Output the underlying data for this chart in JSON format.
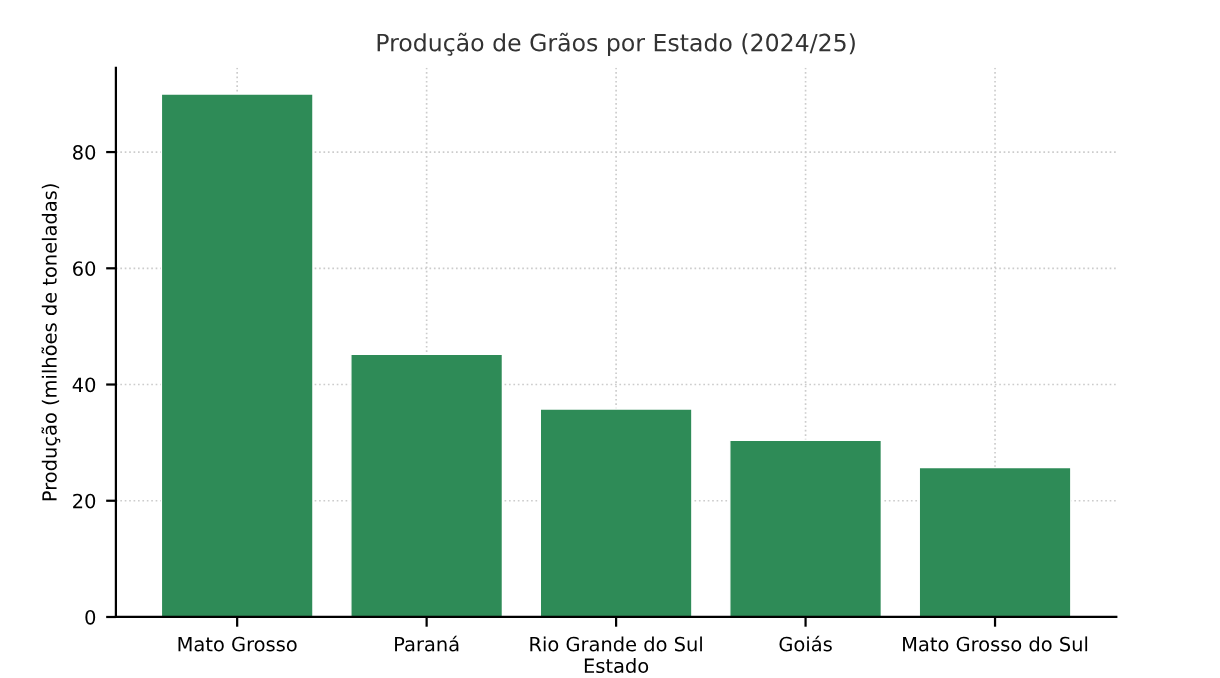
{
  "chart_data": {
    "type": "bar",
    "title": "Produção de Grãos por Estado (2024/25)",
    "xlabel": "Estado",
    "ylabel": "Produção (milhões de toneladas)",
    "categories": [
      "Mato Grosso",
      "Paraná",
      "Rio Grande do Sul",
      "Goiás",
      "Mato Grosso do Sul"
    ],
    "values": [
      90,
      45.2,
      35.8,
      30.4,
      25.7
    ],
    "color": "#2e8b57",
    "ylim": [
      0,
      94.5
    ],
    "yticks": [
      0,
      20,
      40,
      60,
      80
    ],
    "grid": true
  }
}
